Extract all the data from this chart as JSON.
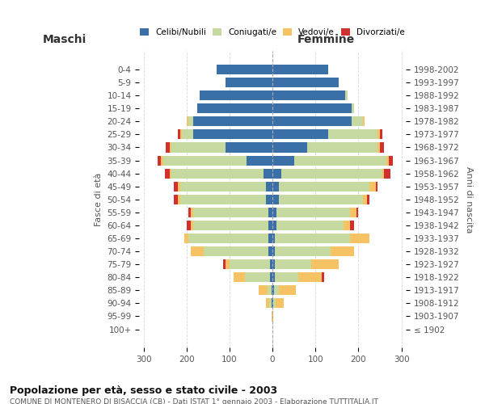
{
  "age_groups": [
    "100+",
    "95-99",
    "90-94",
    "85-89",
    "80-84",
    "75-79",
    "70-74",
    "65-69",
    "60-64",
    "55-59",
    "50-54",
    "45-49",
    "40-44",
    "35-39",
    "30-34",
    "25-29",
    "20-24",
    "15-19",
    "10-14",
    "5-9",
    "0-4"
  ],
  "birth_years": [
    "≤ 1902",
    "1903-1907",
    "1908-1912",
    "1913-1917",
    "1918-1922",
    "1923-1927",
    "1928-1932",
    "1933-1937",
    "1938-1942",
    "1943-1947",
    "1948-1952",
    "1953-1957",
    "1958-1962",
    "1963-1967",
    "1968-1972",
    "1973-1977",
    "1978-1982",
    "1983-1987",
    "1988-1992",
    "1993-1997",
    "1998-2002"
  ],
  "males": {
    "celibi": [
      0,
      0,
      2,
      2,
      5,
      5,
      10,
      10,
      10,
      10,
      15,
      15,
      20,
      60,
      110,
      185,
      185,
      175,
      170,
      110,
      130
    ],
    "coniugati": [
      0,
      0,
      5,
      10,
      60,
      95,
      150,
      185,
      175,
      175,
      200,
      200,
      215,
      195,
      125,
      25,
      10,
      0,
      0,
      0,
      0
    ],
    "vedovi": [
      0,
      2,
      8,
      20,
      25,
      10,
      30,
      10,
      5,
      5,
      5,
      5,
      5,
      5,
      5,
      5,
      5,
      0,
      0,
      0,
      0
    ],
    "divorziati": [
      0,
      0,
      0,
      0,
      0,
      5,
      0,
      0,
      10,
      5,
      10,
      10,
      10,
      8,
      8,
      5,
      0,
      0,
      0,
      0,
      0
    ]
  },
  "females": {
    "nubili": [
      0,
      0,
      2,
      3,
      5,
      5,
      5,
      5,
      10,
      10,
      15,
      15,
      20,
      50,
      80,
      130,
      185,
      185,
      170,
      155,
      130
    ],
    "coniugate": [
      0,
      0,
      5,
      12,
      55,
      85,
      130,
      175,
      155,
      170,
      195,
      210,
      235,
      215,
      165,
      115,
      25,
      5,
      5,
      0,
      0
    ],
    "vedove": [
      0,
      2,
      20,
      40,
      55,
      65,
      55,
      45,
      15,
      15,
      10,
      15,
      5,
      5,
      5,
      5,
      5,
      0,
      0,
      0,
      0
    ],
    "divorziate": [
      0,
      0,
      0,
      0,
      5,
      0,
      0,
      0,
      10,
      5,
      5,
      5,
      15,
      10,
      10,
      5,
      0,
      0,
      0,
      0,
      0
    ]
  },
  "colors": {
    "celibi": "#3a6fa8",
    "coniugati": "#c5d9a0",
    "vedovi": "#f5c264",
    "divorziati": "#d03030"
  },
  "title": "Popolazione per età, sesso e stato civile - 2003",
  "subtitle": "COMUNE DI MONTENERO DI BISACCIA (CB) - Dati ISTAT 1° gennaio 2003 - Elaborazione TUTTITALIA.IT",
  "xlabel_left": "Maschi",
  "xlabel_right": "Femmine",
  "ylabel_left": "Fasce di età",
  "ylabel_right": "Anni di nascita",
  "xlim": 310,
  "background_color": "#ffffff",
  "grid_color": "#cccccc"
}
